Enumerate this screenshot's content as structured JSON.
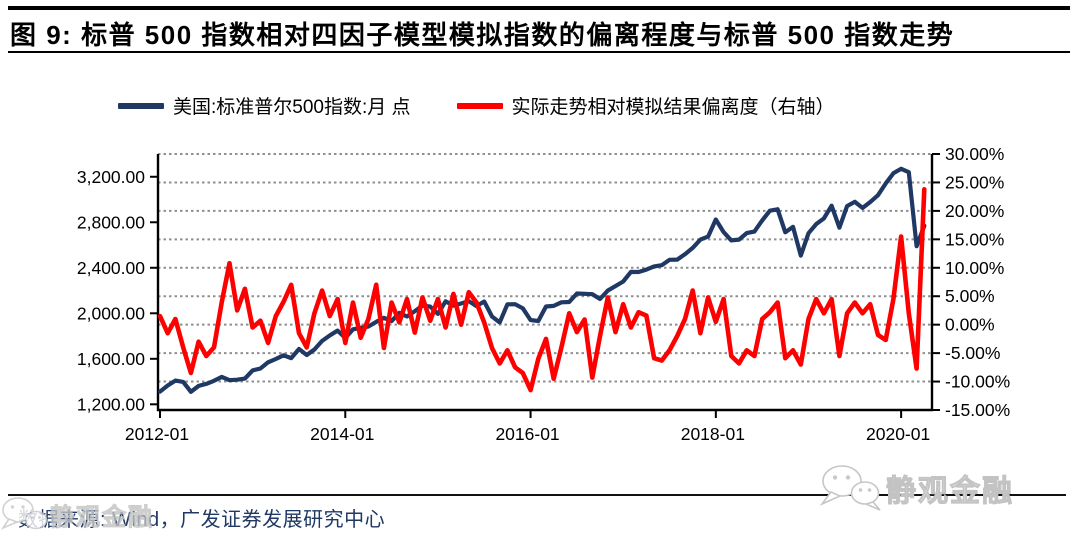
{
  "title": "图 9:  标普 500 指数相对四因子模型模拟指数的偏离程度与标普 500 指数走势",
  "legend": {
    "items": [
      {
        "label": "美国:标准普尔500指数:月 点",
        "color": "#1F3864"
      },
      {
        "label": "实际走势相对模拟结果偏离度（右轴）",
        "color": "#FE0000"
      }
    ]
  },
  "source": {
    "label": "数据来源: Wind，广发证券发展研究中心"
  },
  "watermark": {
    "text": "静观金融",
    "icon": "wechat-logo-icon"
  },
  "chart_data": {
    "type": "line",
    "title": "标普500指数相对四因子模型模拟指数的偏离程度与标普500指数走势",
    "x": {
      "freq": "monthly",
      "start": "2012-01",
      "end": "2020-04",
      "tick_labels": [
        "2012-01",
        "2014-01",
        "2016-01",
        "2018-01",
        "2020-01"
      ],
      "tick_months": [
        0,
        24,
        48,
        72,
        96
      ]
    },
    "left_axis": {
      "min": 1150,
      "max": 3400,
      "tick_values": [
        1200,
        1600,
        2000,
        2400,
        2800,
        3200
      ],
      "tick_labels": [
        "1,200.00",
        "1,600.00",
        "2,000.00",
        "2,400.00",
        "2,800.00",
        "3,200.00"
      ]
    },
    "right_axis": {
      "min": -15,
      "max": 30,
      "tick_values": [
        -15,
        -10,
        -5,
        0,
        5,
        10,
        15,
        20,
        25,
        30
      ],
      "tick_labels": [
        "-15.00%",
        "-10.00%",
        "-5.00%",
        "0.00%",
        "5.00%",
        "10.00%",
        "15.00%",
        "20.00%",
        "25.00%",
        "30.00%"
      ],
      "grid_tick_values": [
        -10,
        -5,
        0,
        5,
        10,
        15,
        20,
        25,
        30
      ]
    },
    "grid": "horizontal-dotted",
    "grid_color": "#8f8f8f",
    "legend_position": "top",
    "series": [
      {
        "name": "美国:标准普尔500指数:月 点",
        "axis": "left",
        "color": "#1F3864",
        "stroke_width": 4.2,
        "values": [
          1312,
          1365,
          1408,
          1397,
          1310,
          1362,
          1379,
          1407,
          1441,
          1412,
          1416,
          1426,
          1498,
          1515,
          1569,
          1598,
          1631,
          1606,
          1686,
          1633,
          1682,
          1757,
          1806,
          1848,
          1783,
          1859,
          1872,
          1884,
          1924,
          1960,
          1931,
          2003,
          1972,
          2018,
          2068,
          2059,
          1995,
          2105,
          2068,
          2086,
          2107,
          2063,
          2104,
          1972,
          1920,
          2079,
          2080,
          2044,
          1940,
          1932,
          2060,
          2065,
          2097,
          2099,
          2174,
          2171,
          2168,
          2126,
          2199,
          2239,
          2279,
          2364,
          2363,
          2384,
          2412,
          2423,
          2470,
          2472,
          2519,
          2575,
          2648,
          2674,
          2824,
          2714,
          2641,
          2648,
          2705,
          2718,
          2816,
          2902,
          2914,
          2712,
          2760,
          2507,
          2704,
          2784,
          2834,
          2946,
          2752,
          2942,
          2980,
          2926,
          2977,
          3038,
          3141,
          3231,
          3270,
          3240,
          2590,
          2770
        ]
      },
      {
        "name": "实际走势相对模拟结果偏离度（右轴）",
        "axis": "right",
        "color": "#FE0000",
        "stroke_width": 4.6,
        "values": [
          1.5,
          -1.5,
          1.0,
          -4.0,
          -8.5,
          -3.0,
          -5.5,
          -4.0,
          4.0,
          10.8,
          2.5,
          6.3,
          -0.5,
          0.7,
          -3.2,
          1.5,
          4.0,
          7.0,
          -1.5,
          -4.0,
          2.0,
          6.0,
          1.5,
          4.5,
          -3.2,
          3.9,
          -2.3,
          1.0,
          7.0,
          -4.1,
          3.9,
          0.4,
          4.5,
          -1.4,
          4.8,
          0.7,
          4.5,
          -0.5,
          5.4,
          0.0,
          5.7,
          3.9,
          0.4,
          -4.1,
          -6.8,
          -4.5,
          -7.5,
          -8.5,
          -11.5,
          -6.0,
          -2.5,
          -9.5,
          -4.0,
          2.0,
          -1.3,
          0.9,
          -9.3,
          -2.0,
          4.8,
          -1.3,
          3.6,
          -0.5,
          2.2,
          1.6,
          -5.9,
          -6.3,
          -4.5,
          -2.0,
          1.0,
          6.0,
          -1.5,
          4.8,
          0.5,
          4.5,
          -5.5,
          -6.8,
          -4.5,
          -5.5,
          1.0,
          2.2,
          3.9,
          -5.9,
          -4.5,
          -7.0,
          1.0,
          4.5,
          2.0,
          4.5,
          -5.5,
          2.0,
          3.9,
          2.0,
          3.6,
          -1.8,
          -2.7,
          4.5,
          15.5,
          2.0,
          -7.7,
          23.8
        ]
      }
    ]
  }
}
